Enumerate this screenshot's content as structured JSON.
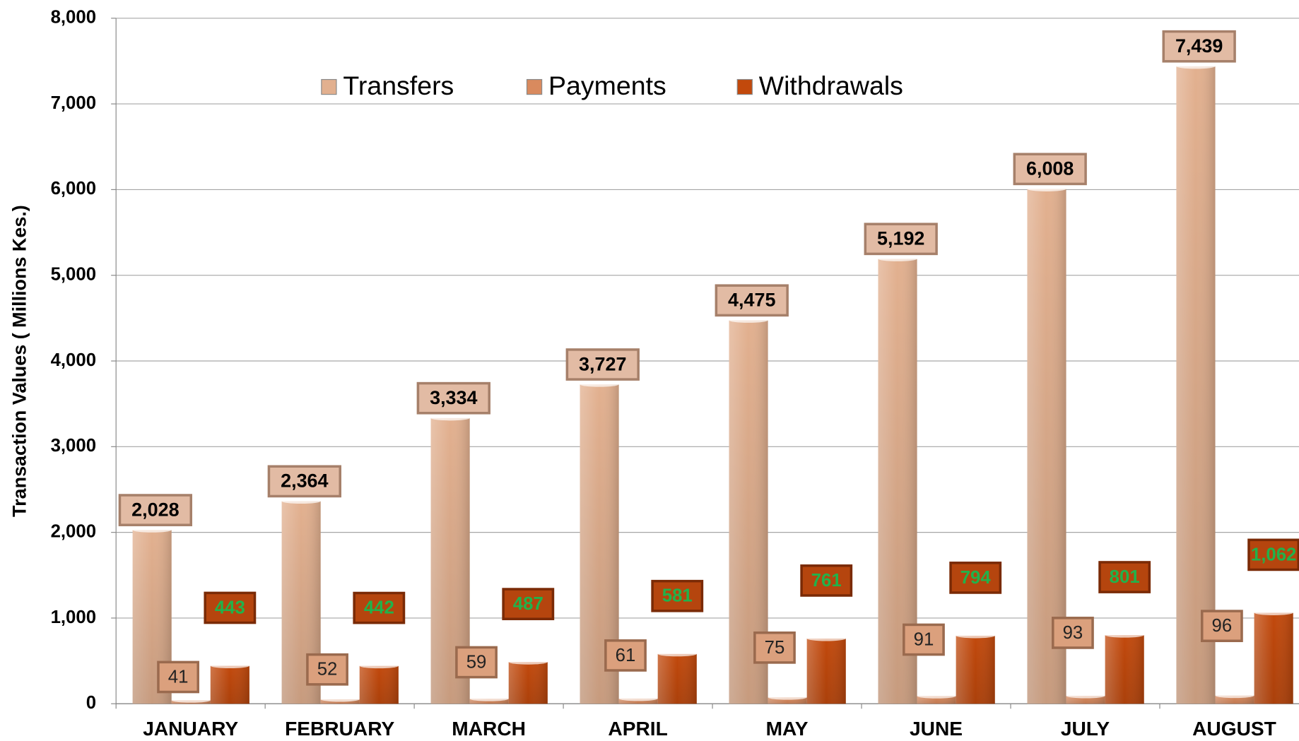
{
  "chart_data": {
    "type": "bar",
    "y_axis_label": "Transaction Values ( Millions Kes.)",
    "categories": [
      "JANUARY",
      "FEBRUARY",
      "MARCH",
      "APRIL",
      "MAY",
      "JUNE",
      "JULY",
      "AUGUST"
    ],
    "series": [
      {
        "name": "Transfers",
        "color": "#e2b08f",
        "values": [
          2028,
          2364,
          3334,
          3727,
          4475,
          5192,
          6008,
          7439
        ],
        "value_labels": [
          "2,028",
          "2,364",
          "3,334",
          "3,727",
          "4,475",
          "5,192",
          "6,008",
          "7,439"
        ]
      },
      {
        "name": "Payments",
        "color": "#d98a5e",
        "values": [
          41,
          52,
          59,
          61,
          75,
          91,
          93,
          96
        ]
      },
      {
        "name": "Withdrawals",
        "color": "#c2490c",
        "values": [
          443,
          442,
          487,
          581,
          761,
          794,
          801,
          1062
        ],
        "value_labels": [
          "443",
          "442",
          "487",
          "581",
          "761",
          "794",
          "801",
          "1,062"
        ]
      }
    ],
    "ylim": [
      0,
      8000
    ],
    "yticks": [
      0,
      {
        "value": 1000,
        "label": "1,000"
      },
      {
        "value": 2000,
        "label": "2,000"
      },
      {
        "value": 3000,
        "label": "3,000"
      },
      {
        "value": 4000,
        "label": "4,000"
      },
      {
        "value": 5000,
        "label": "5,000"
      },
      {
        "value": 6000,
        "label": "6,000"
      },
      {
        "value": 7000,
        "label": "7,000"
      },
      {
        "value": 8000,
        "label": "8,000"
      }
    ],
    "grid": true,
    "legend": "top"
  }
}
